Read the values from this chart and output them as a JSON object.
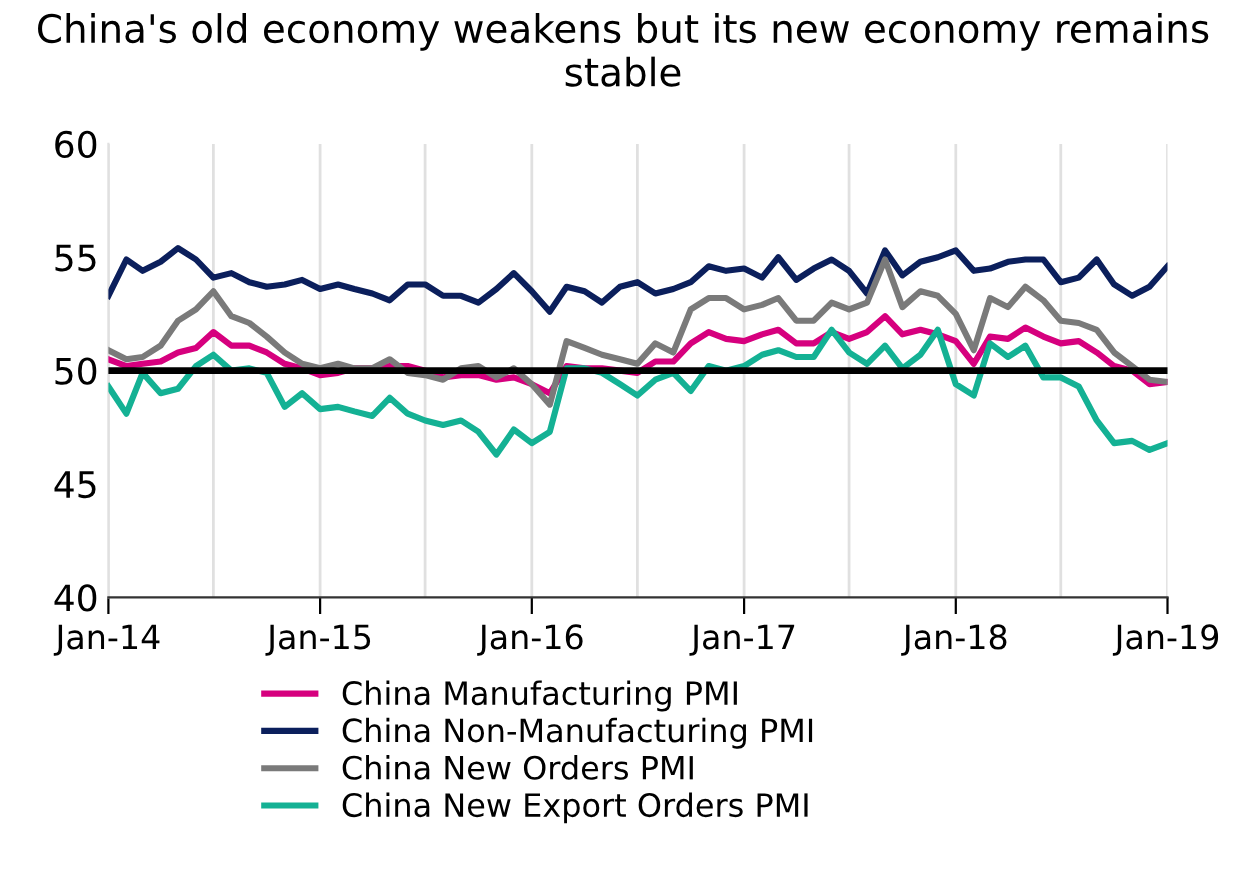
{
  "chart_data": {
    "type": "line",
    "title": "China's old economy weakens but its new economy remains stable",
    "x": [
      "2014-01",
      "2014-02",
      "2014-03",
      "2014-04",
      "2014-05",
      "2014-06",
      "2014-07",
      "2014-08",
      "2014-09",
      "2014-10",
      "2014-11",
      "2014-12",
      "2015-01",
      "2015-02",
      "2015-03",
      "2015-04",
      "2015-05",
      "2015-06",
      "2015-07",
      "2015-08",
      "2015-09",
      "2015-10",
      "2015-11",
      "2015-12",
      "2016-01",
      "2016-02",
      "2016-03",
      "2016-04",
      "2016-05",
      "2016-06",
      "2016-07",
      "2016-08",
      "2016-09",
      "2016-10",
      "2016-11",
      "2016-12",
      "2017-01",
      "2017-02",
      "2017-03",
      "2017-04",
      "2017-05",
      "2017-06",
      "2017-07",
      "2017-08",
      "2017-09",
      "2017-10",
      "2017-11",
      "2017-12",
      "2018-01",
      "2018-02",
      "2018-03",
      "2018-04",
      "2018-05",
      "2018-06",
      "2018-07",
      "2018-08",
      "2018-09",
      "2018-10",
      "2018-11",
      "2018-12",
      "2019-01"
    ],
    "series": [
      {
        "name": "China Manufacturing PMI",
        "color": "#d6007e",
        "values": [
          50.5,
          50.2,
          50.3,
          50.4,
          50.8,
          51.0,
          51.7,
          51.1,
          51.1,
          50.8,
          50.3,
          50.1,
          49.8,
          49.9,
          50.1,
          50.1,
          50.2,
          50.2,
          50.0,
          49.7,
          49.8,
          49.8,
          49.6,
          49.7,
          49.4,
          49.0,
          50.2,
          50.1,
          50.1,
          50.0,
          49.9,
          50.4,
          50.4,
          51.2,
          51.7,
          51.4,
          51.3,
          51.6,
          51.8,
          51.2,
          51.2,
          51.7,
          51.4,
          51.7,
          52.4,
          51.6,
          51.8,
          51.6,
          51.3,
          50.3,
          51.5,
          51.4,
          51.9,
          51.5,
          51.2,
          51.3,
          50.8,
          50.2,
          50.0,
          49.4,
          49.5
        ]
      },
      {
        "name": "China Non-Manufacturing PMI",
        "color": "#0b1f5c",
        "values": [
          53.3,
          54.9,
          54.4,
          54.8,
          55.4,
          54.9,
          54.1,
          54.3,
          53.9,
          53.7,
          53.8,
          54.0,
          53.6,
          53.8,
          53.6,
          53.4,
          53.1,
          53.8,
          53.8,
          53.3,
          53.3,
          53.0,
          53.6,
          54.3,
          53.5,
          52.6,
          53.7,
          53.5,
          53.0,
          53.7,
          53.9,
          53.4,
          53.6,
          53.9,
          54.6,
          54.4,
          54.5,
          54.1,
          55.0,
          54.0,
          54.5,
          54.9,
          54.4,
          53.4,
          55.3,
          54.2,
          54.8,
          55.0,
          55.3,
          54.4,
          54.5,
          54.8,
          54.9,
          54.9,
          53.9,
          54.1,
          54.9,
          53.8,
          53.3,
          53.7,
          54.6
        ]
      },
      {
        "name": "China New Orders PMI",
        "color": "#7a7a7a",
        "values": [
          50.9,
          50.5,
          50.6,
          51.1,
          52.2,
          52.7,
          53.5,
          52.4,
          52.1,
          51.5,
          50.8,
          50.3,
          50.1,
          50.3,
          50.1,
          50.1,
          50.5,
          49.9,
          49.8,
          49.6,
          50.1,
          50.2,
          49.7,
          50.1,
          49.4,
          48.5,
          51.3,
          51.0,
          50.7,
          50.5,
          50.3,
          51.2,
          50.8,
          52.7,
          53.2,
          53.2,
          52.7,
          52.9,
          53.2,
          52.2,
          52.2,
          53.0,
          52.7,
          53.0,
          54.9,
          52.8,
          53.5,
          53.3,
          52.5,
          50.9,
          53.2,
          52.8,
          53.7,
          53.1,
          52.2,
          52.1,
          51.8,
          50.8,
          50.2,
          49.6,
          49.5
        ]
      },
      {
        "name": "China New Export Orders PMI",
        "color": "#14b194",
        "values": [
          49.3,
          48.1,
          49.9,
          49.0,
          49.2,
          50.2,
          50.7,
          50.0,
          50.1,
          49.9,
          48.4,
          49.0,
          48.3,
          48.4,
          48.2,
          48.0,
          48.8,
          48.1,
          47.8,
          47.6,
          47.8,
          47.3,
          46.3,
          47.4,
          46.8,
          47.3,
          50.1,
          50.1,
          49.9,
          49.4,
          48.9,
          49.6,
          49.9,
          49.1,
          50.2,
          50.0,
          50.2,
          50.7,
          50.9,
          50.6,
          50.6,
          51.8,
          50.8,
          50.3,
          51.1,
          50.1,
          50.7,
          51.8,
          49.4,
          48.9,
          51.2,
          50.6,
          51.1,
          49.7,
          49.7,
          49.3,
          47.8,
          46.8,
          46.9,
          46.5,
          46.8
        ]
      }
    ],
    "xlim": [
      "2014-01",
      "2019-01"
    ],
    "xticks": [
      {
        "value": "2014-01",
        "label": "Jan-14"
      },
      {
        "value": "2014-07",
        "label": null
      },
      {
        "value": "2015-01",
        "label": "Jan-15"
      },
      {
        "value": "2015-07",
        "label": null
      },
      {
        "value": "2016-01",
        "label": "Jan-16"
      },
      {
        "value": "2016-07",
        "label": null
      },
      {
        "value": "2017-01",
        "label": "Jan-17"
      },
      {
        "value": "2017-07",
        "label": null
      },
      {
        "value": "2018-01",
        "label": "Jan-18"
      },
      {
        "value": "2018-07",
        "label": null
      },
      {
        "value": "2019-01",
        "label": "Jan-19"
      }
    ],
    "ylim": [
      40,
      60
    ],
    "yticks": [
      40,
      45,
      50,
      55,
      60
    ],
    "ref_lines": [
      {
        "axis": "y",
        "value": 50,
        "color": "#000000"
      }
    ],
    "grid": "x",
    "legend": "bottom",
    "marker": "none",
    "line_style": "solid"
  }
}
